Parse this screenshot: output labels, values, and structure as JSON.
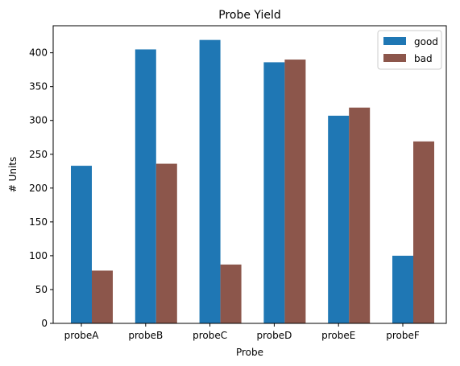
{
  "chart_data": {
    "type": "bar",
    "title": "Probe Yield",
    "xlabel": "Probe",
    "ylabel": "# Units",
    "categories": [
      "probeA",
      "probeB",
      "probeC",
      "probeD",
      "probeE",
      "probeF"
    ],
    "series": [
      {
        "name": "good",
        "color": "#1f77b4",
        "values": [
          233,
          405,
          419,
          386,
          307,
          100
        ]
      },
      {
        "name": "bad",
        "color": "#8c564b",
        "values": [
          78,
          236,
          87,
          390,
          319,
          269
        ]
      }
    ],
    "ylim": [
      0,
      440
    ],
    "yticks": [
      0,
      50,
      100,
      150,
      200,
      250,
      300,
      350,
      400
    ],
    "grid": false,
    "legend_position": "top-right"
  }
}
